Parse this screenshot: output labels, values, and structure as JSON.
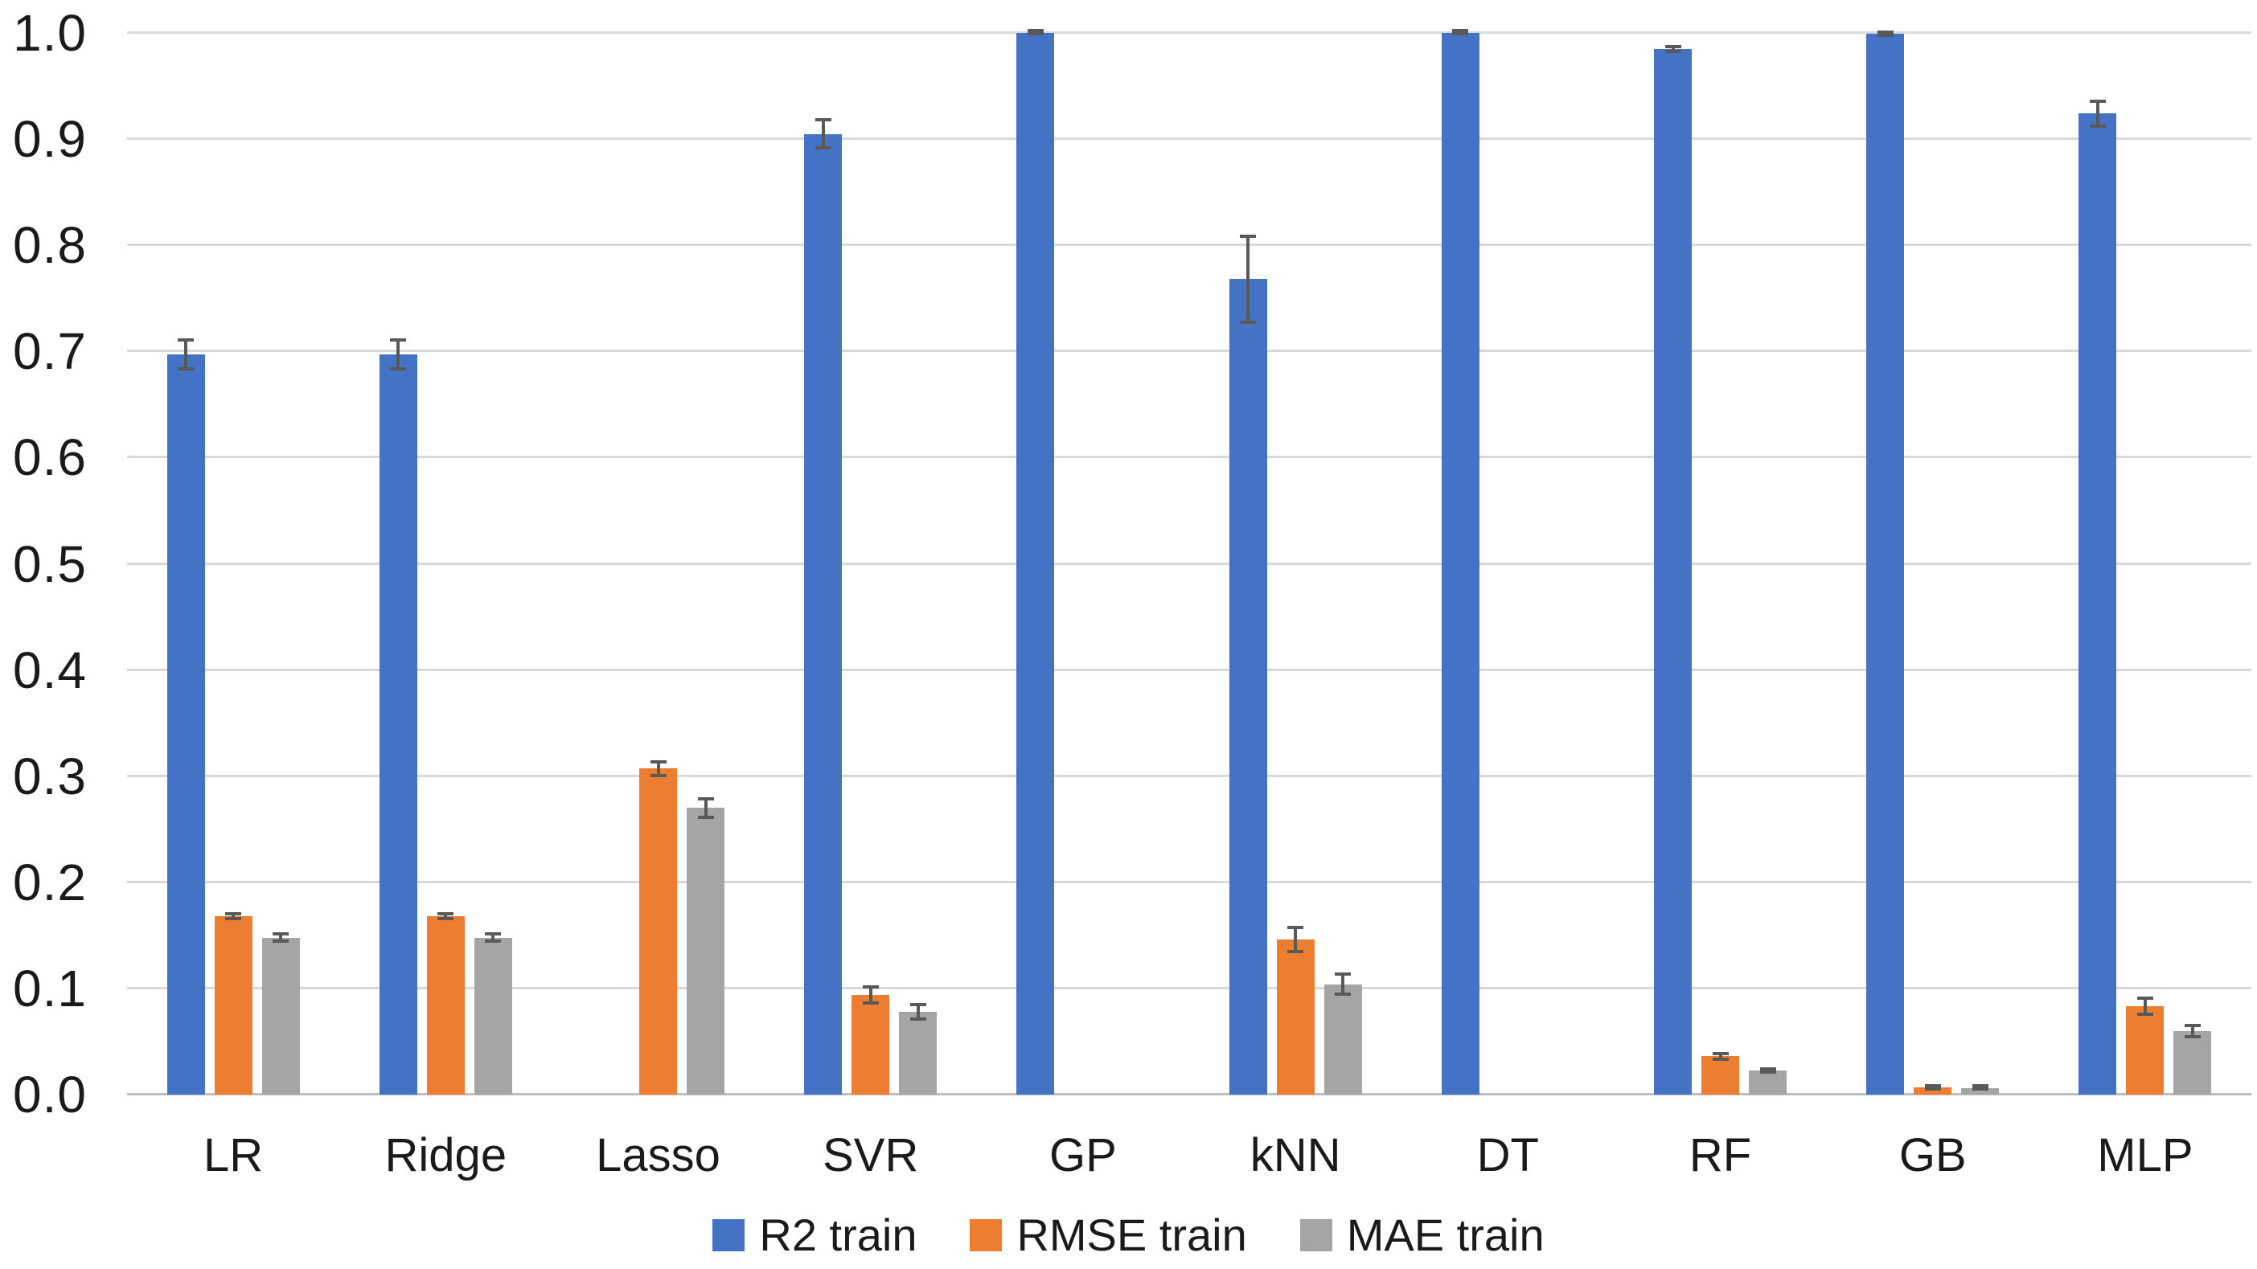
{
  "chart_data": {
    "type": "bar",
    "title": "",
    "xlabel": "",
    "ylabel": "",
    "categories": [
      "LR",
      "Ridge",
      "Lasso",
      "SVR",
      "GP",
      "kNN",
      "DT",
      "RF",
      "GB",
      "MLP"
    ],
    "series": [
      {
        "name": "R2 train",
        "color": "#4472C4",
        "values": [
          0.697,
          0.697,
          0,
          0.905,
          1.0,
          0.768,
          1.0,
          0.985,
          0.999,
          0.924
        ],
        "errors": [
          0.015,
          0.015,
          0,
          0.015,
          0.002,
          0.042,
          0.002,
          0.004,
          0.003,
          0.013
        ]
      },
      {
        "name": "RMSE train",
        "color": "#ED7D31",
        "values": [
          0.168,
          0.168,
          0.307,
          0.094,
          0,
          0.146,
          0,
          0.036,
          0.007,
          0.083
        ],
        "errors": [
          0.004,
          0.004,
          0.008,
          0.009,
          0,
          0.013,
          0,
          0.004,
          0.003,
          0.009
        ]
      },
      {
        "name": "MAE train",
        "color": "#A5A5A5",
        "values": [
          0.148,
          0.148,
          0.27,
          0.078,
          0,
          0.104,
          0,
          0.023,
          0.006,
          0.06
        ],
        "errors": [
          0.005,
          0.005,
          0.01,
          0.008,
          0,
          0.011,
          0,
          0.003,
          0.002,
          0.007
        ]
      }
    ],
    "ylim": [
      0.0,
      1.0
    ],
    "ytick_step": 0.1,
    "ytick_labels": [
      "0.0",
      "0.1",
      "0.2",
      "0.3",
      "0.4",
      "0.5",
      "0.6",
      "0.7",
      "0.8",
      "0.9",
      "1.0"
    ],
    "grid": true,
    "legend_position": "bottom",
    "colors": {
      "error_bar": "#595959",
      "gridline": "#D9D9D9",
      "axis_line": "#BFBFBF",
      "text": "#1A1A1A",
      "background": "#FFFFFF"
    }
  }
}
